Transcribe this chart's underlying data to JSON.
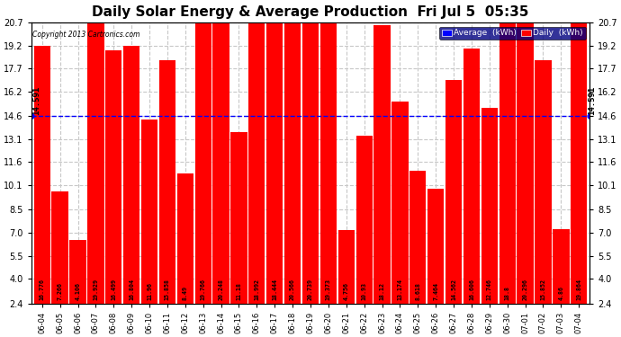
{
  "title": "Daily Solar Energy & Average Production  Fri Jul 5  05:35",
  "copyright": "Copyright 2013 Cartronics.com",
  "average_label": "Average  (kWh)",
  "daily_label": "Daily  (kWh)",
  "average_value": 14.591,
  "categories": [
    "06-04",
    "06-05",
    "06-06",
    "06-07",
    "06-08",
    "06-09",
    "06-10",
    "06-11",
    "06-12",
    "06-13",
    "06-14",
    "06-15",
    "06-16",
    "06-17",
    "06-18",
    "06-19",
    "06-20",
    "06-21",
    "06-22",
    "06-23",
    "06-24",
    "06-25",
    "06-26",
    "06-27",
    "06-28",
    "06-29",
    "06-30",
    "07-01",
    "07-02",
    "07-03",
    "07-04"
  ],
  "values": [
    16.776,
    7.266,
    4.106,
    19.929,
    16.499,
    16.804,
    11.96,
    15.858,
    8.49,
    19.766,
    20.248,
    11.18,
    18.992,
    18.444,
    20.566,
    20.739,
    19.373,
    4.756,
    10.93,
    18.12,
    13.174,
    8.618,
    7.464,
    14.562,
    16.606,
    12.746,
    18.8,
    20.296,
    15.852,
    4.86,
    19.864
  ],
  "bar_color": "#ff0000",
  "avg_line_color": "#0000ff",
  "background_color": "#ffffff",
  "plot_bg_color": "#ffffff",
  "grid_color": "#c8c8c8",
  "ylim": [
    2.4,
    20.7
  ],
  "yticks": [
    2.4,
    4.0,
    5.5,
    7.0,
    8.5,
    10.1,
    11.6,
    13.1,
    14.6,
    16.2,
    17.7,
    19.2,
    20.7
  ],
  "title_fontsize": 11,
  "bar_value_fontsize": 4.8,
  "avg_fontsize": 6.5,
  "legend_bg_color": "#000080",
  "legend_text_color": "#ffffff",
  "avg_legend_color": "#0000ff",
  "daily_legend_color": "#ff0000"
}
